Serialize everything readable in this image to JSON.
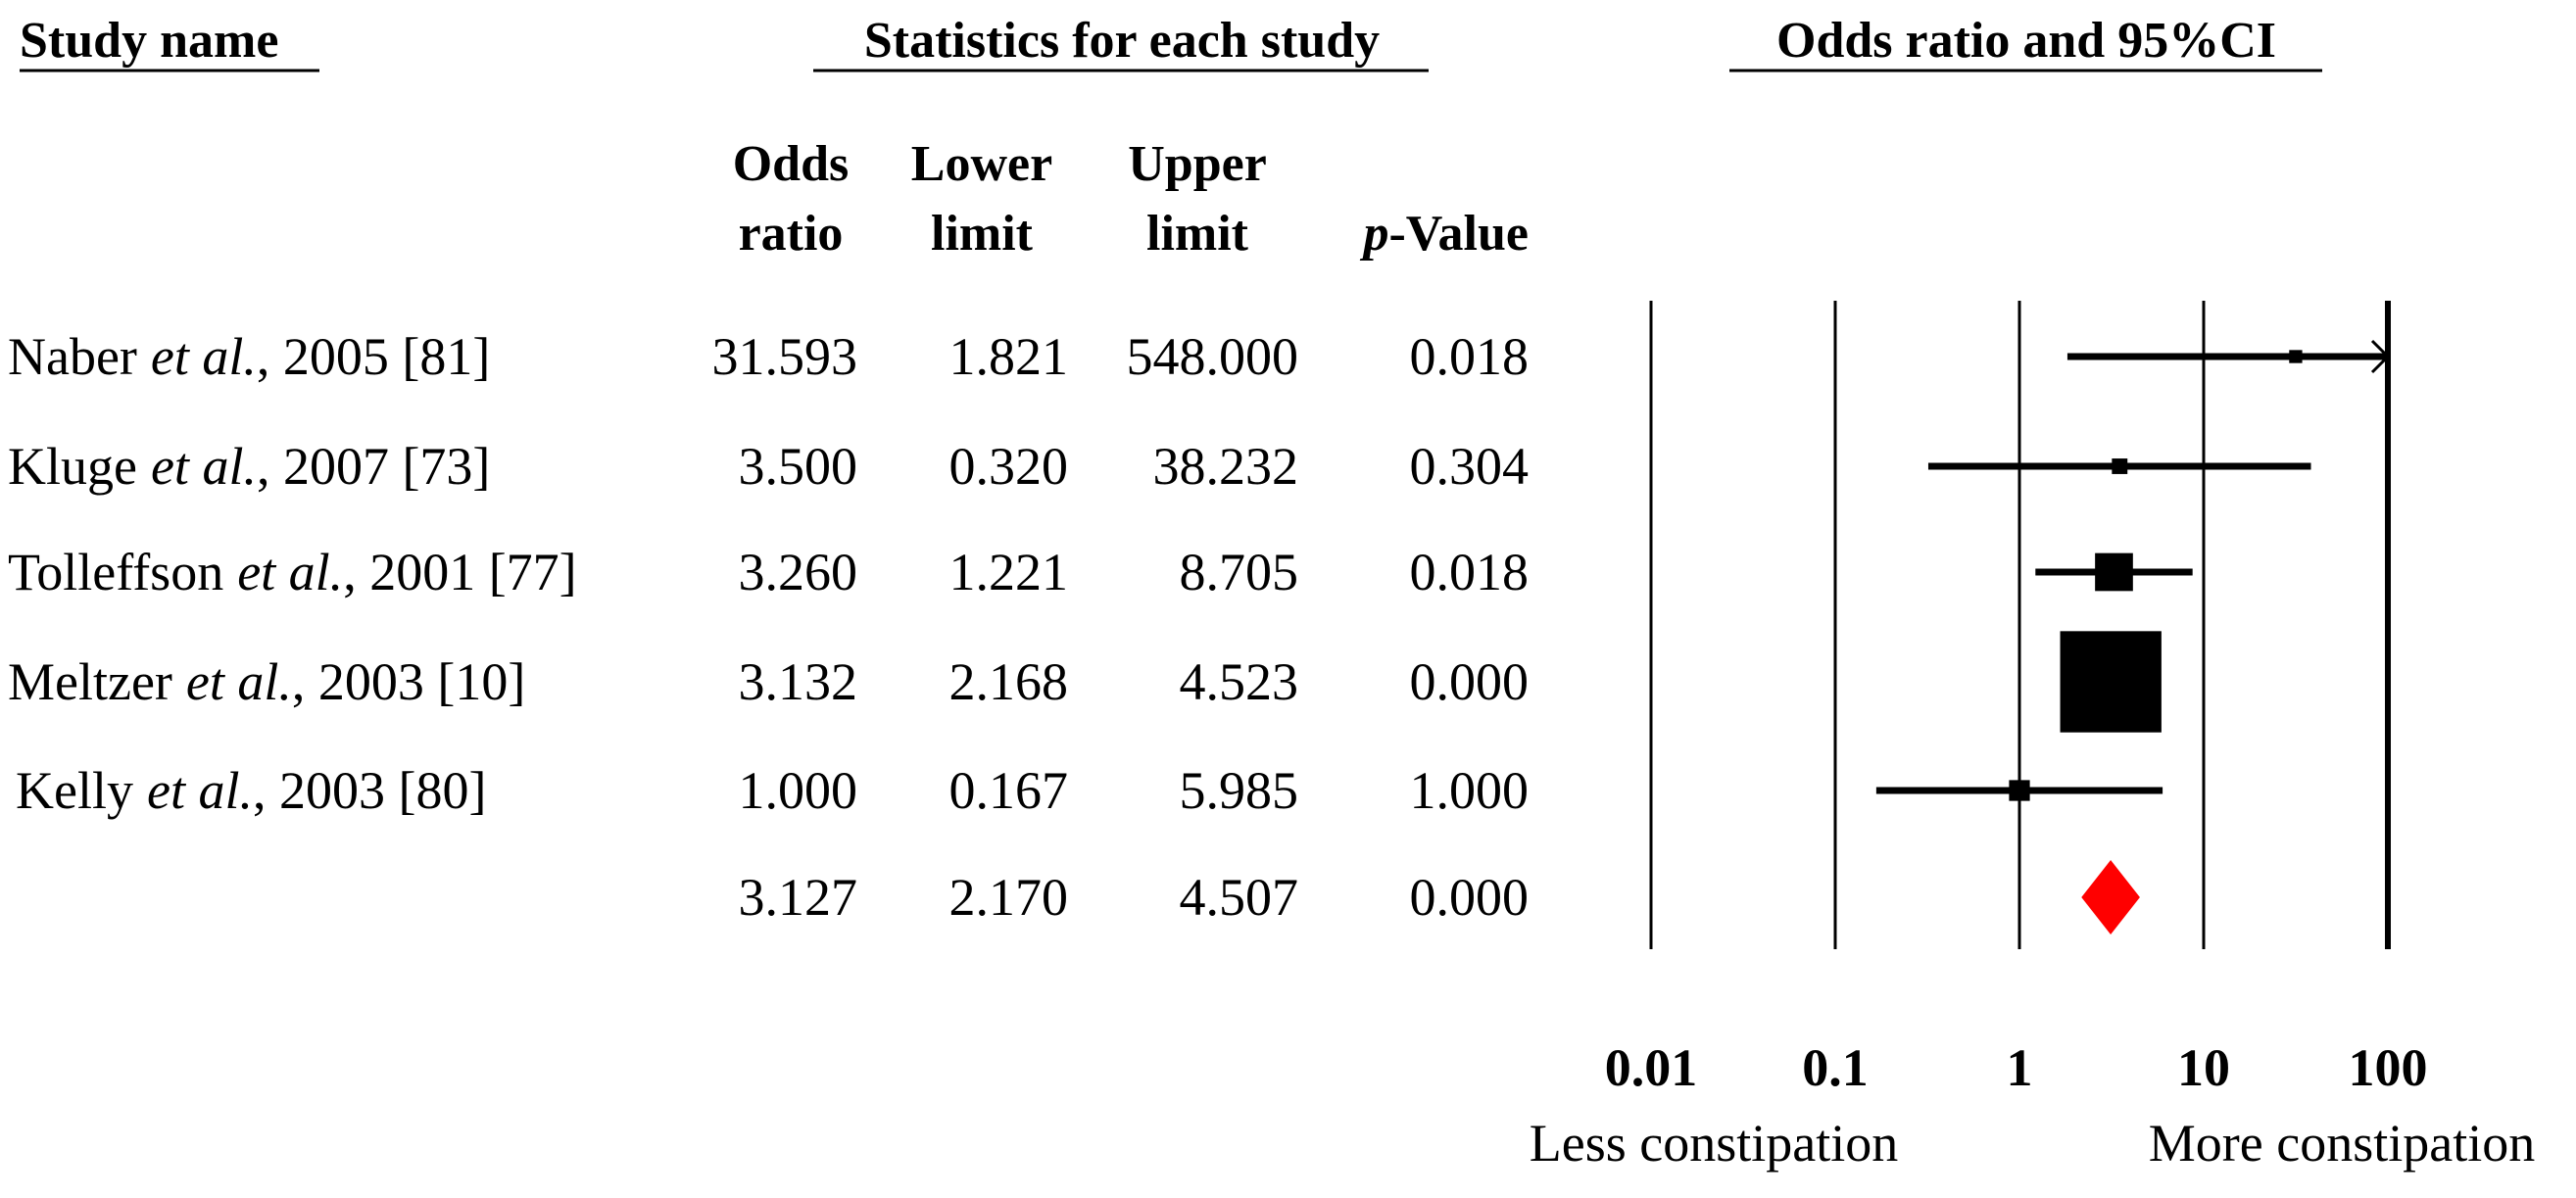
{
  "chart_data": {
    "type": "forest",
    "headers": {
      "study": "Study name",
      "statistics": "Statistics for each study",
      "plot": "Odds ratio and 95%CI"
    },
    "columns": {
      "or": [
        "Odds",
        "ratio"
      ],
      "lower": [
        "Lower",
        "limit"
      ],
      "upper": [
        "Upper",
        "limit"
      ],
      "p": {
        "italic": "p",
        "text": "-Value"
      }
    },
    "studies": [
      {
        "author": "Naber",
        "etal": "et al.",
        "rest": ", 2005 [81]",
        "or": 31.593,
        "or_label": "31.593",
        "lower": 1.821,
        "lower_label": "1.821",
        "upper": 548.0,
        "upper_label": "548.000",
        "p": "0.018"
      },
      {
        "author": "Kluge",
        "etal": "et al.",
        "rest": ", 2007 [73]",
        "or": 3.5,
        "or_label": "3.500",
        "lower": 0.32,
        "lower_label": "0.320",
        "upper": 38.232,
        "upper_label": "38.232",
        "p": "0.304"
      },
      {
        "author": "Tolleffson",
        "etal": "et al.",
        "rest": ", 2001 [77]",
        "or": 3.26,
        "or_label": "3.260",
        "lower": 1.221,
        "lower_label": "1.221",
        "upper": 8.705,
        "upper_label": "8.705",
        "p": "0.018"
      },
      {
        "author": "Meltzer",
        "etal": "et al.",
        "rest": ", 2003 [10]",
        "or": 3.132,
        "or_label": "3.132",
        "lower": 2.168,
        "lower_label": "2.168",
        "upper": 4.523,
        "upper_label": "4.523",
        "p": "0.000"
      },
      {
        "author": "Kelly",
        "etal": "et al.",
        "rest": ", 2003 [80]",
        "or": 1.0,
        "or_label": "1.000",
        "lower": 0.167,
        "lower_label": "0.167",
        "upper": 5.985,
        "upper_label": "5.985",
        "p": "1.000"
      }
    ],
    "summary": {
      "or": 3.127,
      "or_label": "3.127",
      "lower": 2.17,
      "lower_label": "2.170",
      "upper": 4.507,
      "upper_label": "4.507",
      "p": "0.000",
      "color": "#ff0000"
    },
    "color": "#000000",
    "log_scale": true,
    "xlim": [
      0.01,
      100
    ],
    "xticks": [
      0.01,
      0.1,
      1,
      10,
      100
    ],
    "grid": true,
    "xlabel_left": "Less constipation",
    "xlabel_right": "More constipation"
  }
}
